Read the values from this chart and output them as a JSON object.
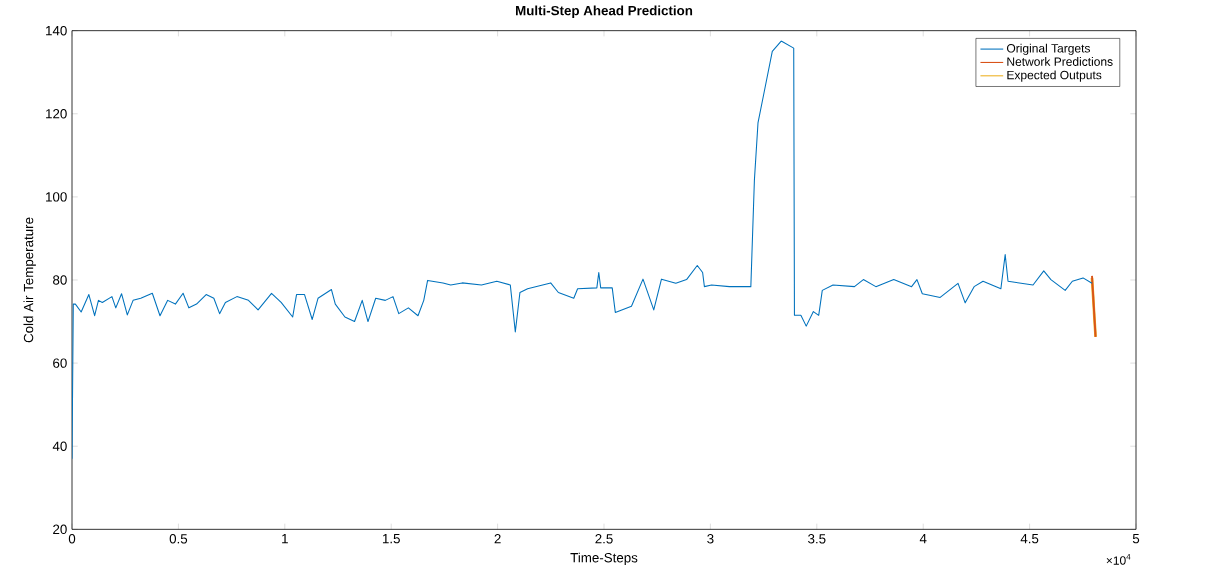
{
  "chart_data": {
    "type": "line",
    "title": "Multi-Step Ahead Prediction",
    "xlabel": "Time-Steps",
    "ylabel": "Cold Air Temperature",
    "annotations": [
      "×10$^{4}$"
    ],
    "xlim": [
      0,
      5
    ],
    "xticks": [
      0,
      0.5,
      1,
      1.5,
      2,
      2.5,
      3,
      3.5,
      4,
      4.5,
      5
    ],
    "ylim": [
      20,
      140
    ],
    "yticks": [
      20,
      40,
      60,
      80,
      100,
      120,
      140
    ],
    "legend": "top right",
    "grid": false,
    "series": [
      {
        "name": "Original Targets",
        "color": "#0072bd",
        "x": [
          0,
          0.006,
          0.0159,
          0.043,
          0.0792,
          0.1063,
          0.1243,
          0.1424,
          0.1876,
          0.2057,
          0.2328,
          0.2599,
          0.287,
          0.3231,
          0.3774,
          0.4135,
          0.4497,
          0.4858,
          0.522,
          0.5491,
          0.5852,
          0.6304,
          0.6665,
          0.6936,
          0.7208,
          0.775,
          0.8292,
          0.8744,
          0.9376,
          0.9828,
          1.037,
          1.0551,
          1.0927,
          1.1288,
          1.156,
          1.2192,
          1.2373,
          1.2825,
          1.3277,
          1.3638,
          1.3909,
          1.4271,
          1.4723,
          1.5084,
          1.5355,
          1.5807,
          1.6259,
          1.653,
          1.6711,
          1.7434,
          1.7795,
          1.8338,
          1.9241,
          1.9964,
          2.0597,
          2.0832,
          2.1049,
          2.141,
          2.2494,
          2.2856,
          2.3579,
          2.376,
          2.4663,
          2.4754,
          2.4844,
          2.5386,
          2.5531,
          2.629,
          2.6832,
          2.7338,
          2.77,
          2.8375,
          2.8879,
          2.9382,
          2.9634,
          2.9718,
          3.0054,
          3.0893,
          3.19,
          3.2068,
          3.2236,
          3.2908,
          3.3327,
          3.3915,
          3.3949,
          3.4251,
          3.4503,
          3.4839,
          3.5089,
          3.5257,
          3.5761,
          3.6768,
          3.7188,
          3.7775,
          3.8615,
          3.9454,
          3.9706,
          3.9958,
          4.0797,
          4.1636,
          4.1972,
          4.2392,
          4.2811,
          4.365,
          4.3852,
          4.3986,
          4.5161,
          4.5665,
          4.6001,
          4.6672,
          4.7008,
          4.7512,
          4.7931
        ],
        "values": [
          37,
          74.2,
          74.2,
          72.3,
          76.5,
          71.4,
          75.1,
          74.6,
          76.0,
          73.3,
          76.7,
          71.6,
          75.1,
          75.6,
          76.8,
          71.4,
          75.1,
          74.2,
          76.8,
          73.3,
          74.2,
          76.5,
          75.6,
          71.9,
          74.6,
          76.0,
          75.1,
          72.8,
          76.8,
          74.6,
          71.1,
          76.5,
          76.5,
          70.5,
          75.6,
          77.7,
          74.2,
          71.1,
          70.0,
          75.1,
          70.0,
          75.6,
          75.1,
          76.0,
          71.9,
          73.3,
          71.4,
          75.1,
          79.9,
          79.3,
          78.8,
          79.3,
          78.8,
          79.7,
          78.8,
          67.5,
          77.0,
          77.9,
          79.3,
          77.0,
          75.6,
          77.9,
          78.1,
          81.8,
          78.1,
          78.1,
          72.2,
          73.7,
          80.2,
          72.8,
          80.2,
          79.2,
          80.1,
          83.5,
          81.8,
          78.4,
          78.8,
          78.4,
          78.4,
          104.1,
          117.8,
          135.0,
          137.5,
          135.8,
          71.5,
          71.5,
          68.9,
          72.4,
          71.5,
          77.5,
          78.8,
          78.4,
          80.1,
          78.4,
          80.1,
          78.4,
          80.1,
          76.7,
          75.8,
          79.2,
          74.5,
          78.4,
          79.7,
          77.9,
          86.1,
          79.7,
          78.8,
          82.2,
          80.1,
          77.5,
          79.7,
          80.5,
          79.2
        ]
      },
      {
        "name": "Network Predictions",
        "color": "#d95319",
        "x": [
          4.7931,
          4.81
        ],
        "values": [
          81,
          66.3
        ]
      },
      {
        "name": "Expected Outputs",
        "color": "#edb120",
        "x": [
          4.7931,
          4.81
        ],
        "values": [
          80.5,
          66.3
        ]
      }
    ]
  }
}
